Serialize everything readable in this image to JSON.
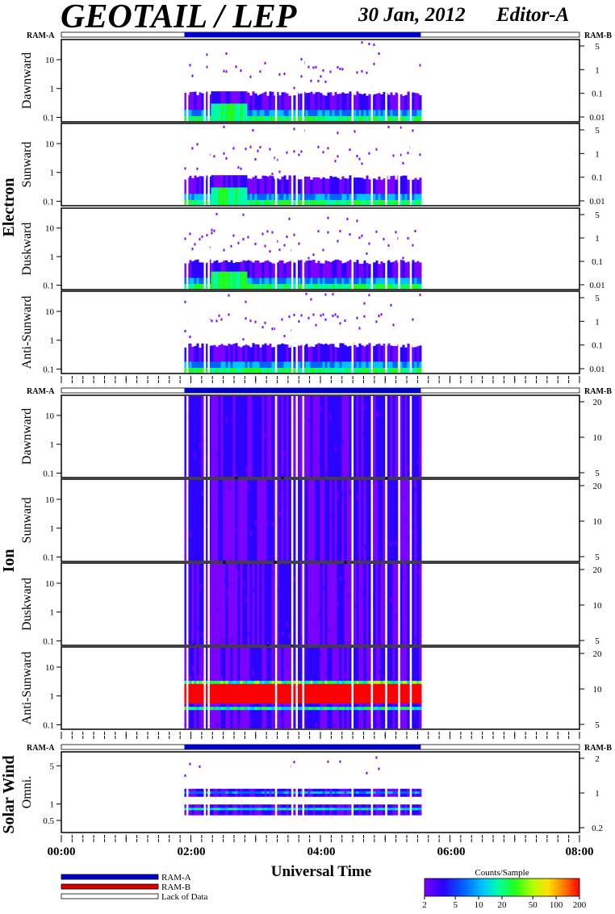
{
  "header": {
    "title": "GEOTAIL / LEP",
    "date": "30 Jan, 2012",
    "editor": "Editor-A"
  },
  "chart_data": {
    "type": "heatmap",
    "xlabel": "Universal Time",
    "x_ticks": [
      "00:00",
      "02:00",
      "04:00",
      "06:00",
      "08:00"
    ],
    "xlim_hours": [
      0,
      8
    ],
    "data_interval_hours": [
      1.9,
      5.55
    ],
    "data_gaps_hours": [
      1.93,
      2.2,
      2.26,
      3.3,
      3.55,
      3.62,
      3.72,
      4.48,
      4.78,
      5.0,
      5.2,
      5.38
    ],
    "ram_labels": {
      "left": "RAM-A",
      "right": "RAM-B"
    },
    "groups": [
      {
        "name": "Electron",
        "panels": [
          {
            "name": "Dawnward",
            "left_ticks": [
              "10",
              "1",
              "0.1"
            ],
            "right_ticks": [
              "5",
              "1",
              "0.1",
              "0.01"
            ],
            "profile": "electron_dawn"
          },
          {
            "name": "Sunward",
            "left_ticks": [
              "10",
              "1",
              "0.1"
            ],
            "right_ticks": [
              "5",
              "1",
              "0.1",
              "0.01"
            ],
            "profile": "electron_sun"
          },
          {
            "name": "Duskward",
            "left_ticks": [
              "10",
              "1",
              "0.1"
            ],
            "right_ticks": [
              "5",
              "1",
              "0.1",
              "0.01"
            ],
            "profile": "electron_dusk"
          },
          {
            "name": "Anti-Sunward",
            "left_ticks": [
              "10",
              "1",
              "0.1"
            ],
            "right_ticks": [
              "5",
              "1",
              "0.1",
              "0.01"
            ],
            "profile": "electron_anti"
          }
        ]
      },
      {
        "name": "Ion",
        "panels": [
          {
            "name": "Dawnward",
            "left_ticks": [
              "10",
              "1",
              "0.1"
            ],
            "right_ticks": [
              "20",
              "10",
              "5"
            ],
            "profile": "ion"
          },
          {
            "name": "Sunward",
            "left_ticks": [
              "10",
              "1",
              "0.1"
            ],
            "right_ticks": [
              "20",
              "10",
              "5"
            ],
            "profile": "ion"
          },
          {
            "name": "Duskward",
            "left_ticks": [
              "10",
              "1",
              "0.1"
            ],
            "right_ticks": [
              "20",
              "10",
              "5"
            ],
            "profile": "ion"
          },
          {
            "name": "Anti-Sunward",
            "left_ticks": [
              "10",
              "1",
              "0.1"
            ],
            "right_ticks": [
              "20",
              "10",
              "5"
            ],
            "profile": "ion_anti"
          }
        ]
      },
      {
        "name": "Solar Wind",
        "panels": [
          {
            "name": "Omni.",
            "left_ticks": [
              "5",
              "1",
              "0.5"
            ],
            "right_ticks": [
              "2",
              "1",
              "0.2"
            ],
            "profile": "solarwind"
          }
        ]
      }
    ],
    "legend": {
      "items": [
        {
          "label": "RAM-A",
          "color": "#0000cc"
        },
        {
          "label": "RAM-B",
          "color": "#dd0000"
        },
        {
          "label": "Lack of Data",
          "color": "#ffffff"
        }
      ]
    },
    "colorbar": {
      "title": "Counts/Sample",
      "ticks": [
        "2",
        "5",
        "10",
        "20",
        "50",
        "100",
        "200"
      ],
      "range": [
        2,
        200
      ],
      "scale": "log"
    },
    "colors": {
      "ram_a": "#0000cc",
      "ram_b": "#dd0000",
      "scale": [
        "#7a00ff",
        "#2a00ff",
        "#0066ff",
        "#00c8ff",
        "#00ffa0",
        "#20ff20",
        "#b4ff00",
        "#ffe000",
        "#ff7a00",
        "#ff0000"
      ]
    }
  }
}
